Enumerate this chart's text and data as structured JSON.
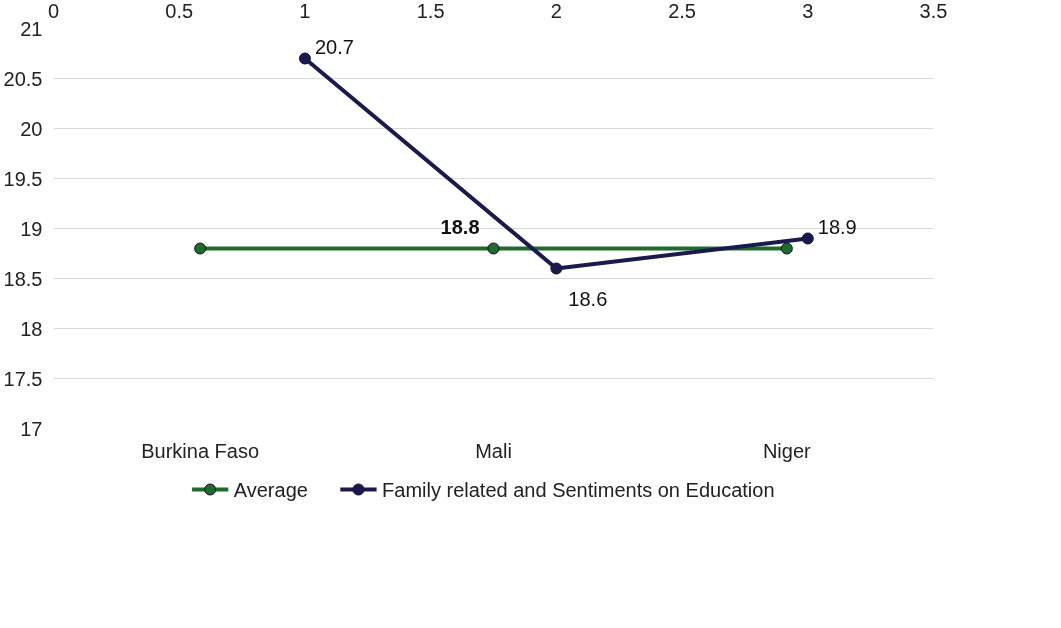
{
  "chart_data": {
    "type": "line",
    "categories": [
      "Burkina Faso",
      "Mali",
      "Niger"
    ],
    "ylim": [
      17,
      21
    ],
    "yticks": [
      17,
      17.5,
      18,
      18.5,
      19,
      19.5,
      20,
      20.5,
      21
    ],
    "x2lim": [
      0,
      3.5
    ],
    "x2ticks": [
      0,
      0.5,
      1,
      1.5,
      2,
      2.5,
      3,
      3.5
    ],
    "grid": "y",
    "legend": "bottom",
    "marker": "circle",
    "line_style": "solid",
    "series": [
      {
        "name": "Average",
        "color": "#1e6b2a",
        "values": [
          18.8,
          18.8,
          18.8
        ],
        "value_labels": [
          null,
          "18.8",
          null
        ]
      },
      {
        "name": "Family related and Sentiments on Education",
        "color": "#1a1a4e",
        "axis": "x2",
        "x": [
          1,
          2,
          3
        ],
        "values": [
          20.7,
          18.6,
          18.9
        ],
        "value_labels": [
          "20.7",
          "18.6",
          "18.9"
        ]
      }
    ]
  }
}
